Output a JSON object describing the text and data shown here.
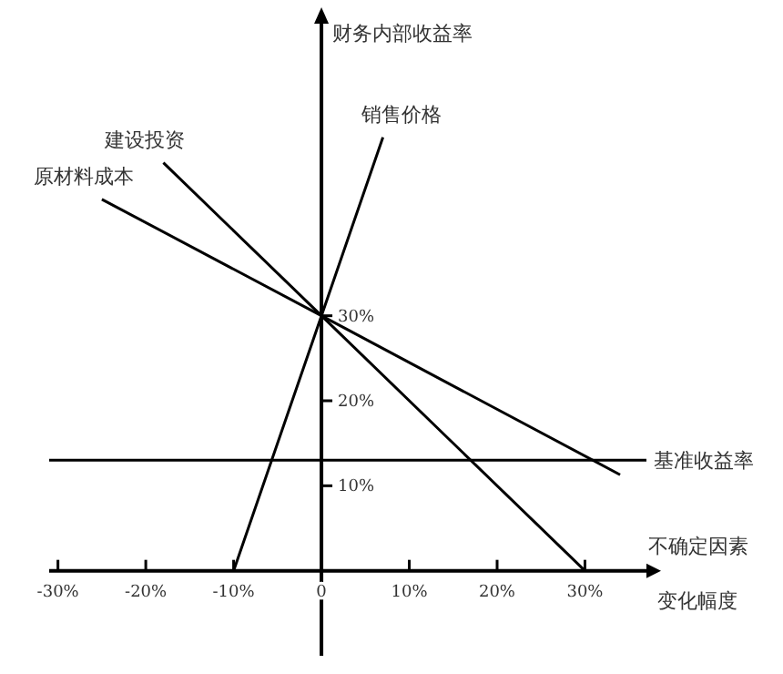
{
  "chart_data": {
    "type": "line",
    "xlabel": "不确定因素",
    "annotations": [
      "变化幅度"
    ],
    "ylabel": "财务内部收益率",
    "xlim": [
      -31,
      37
    ],
    "ylim": [
      -10,
      65
    ],
    "xticks": [
      {
        "value": -30,
        "label": "-30%"
      },
      {
        "value": -20,
        "label": "-20%"
      },
      {
        "value": -10,
        "label": "-10%"
      },
      0,
      {
        "value": 10,
        "label": "10%"
      },
      {
        "value": 20,
        "label": "20%"
      },
      {
        "value": 30,
        "label": "30%"
      }
    ],
    "yticks": [
      {
        "value": 10,
        "label": "10%"
      },
      {
        "value": 20,
        "label": "20%"
      },
      {
        "value": 30,
        "label": "30%"
      }
    ],
    "grid": false,
    "legend": false,
    "marker": "none",
    "line_style": "solid",
    "series": [
      {
        "name": "原材料成本",
        "color": "#000000",
        "x": [
          -25,
          0,
          34
        ],
        "values": [
          43.7,
          30,
          11.3
        ]
      },
      {
        "name": "建设投资",
        "color": "#000000",
        "x": [
          -18,
          0,
          30
        ],
        "values": [
          48,
          30,
          0
        ]
      },
      {
        "name": "销售价格",
        "color": "#000000",
        "x": [
          -10,
          0,
          7
        ],
        "values": [
          0,
          30,
          51
        ]
      }
    ],
    "ref_lines": [
      {
        "axis": "y",
        "value": 13,
        "label": "基准收益率",
        "color": "#000000",
        "line_style": "solid"
      }
    ]
  }
}
